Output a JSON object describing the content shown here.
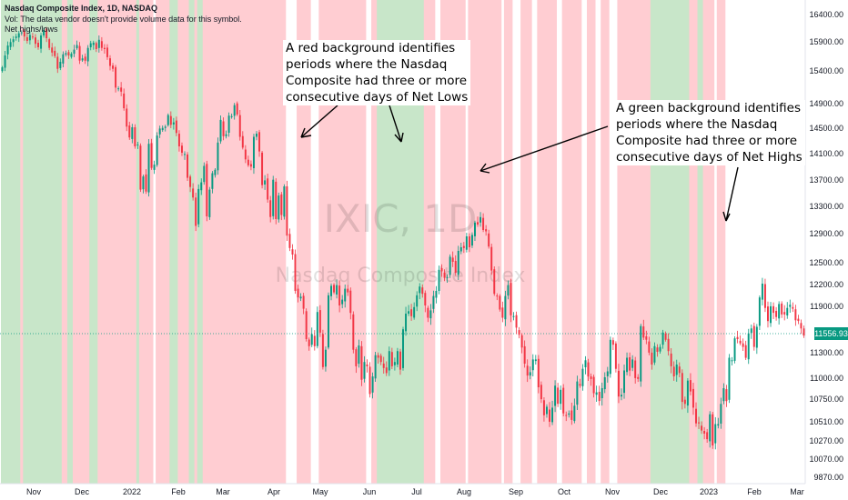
{
  "header": {
    "symbol_line": "Nasdaq Composite Index, 1D, NASDAQ",
    "vol_line": "Vol: The data vendor doesn't provide volume data for this symbol.",
    "indicator_line": "Net highs/lows"
  },
  "watermark": {
    "ticker": "IXIC, 1D",
    "name": "Nasdaq Composite Index"
  },
  "annotations": {
    "red_text": [
      "A red background identifies",
      "periods where the Nasdaq",
      "Composite had three or more",
      "consecutive days of Net Lows"
    ],
    "green_text": [
      "A green background identifies",
      "periods where the Nasdaq",
      "Composite had three or more",
      "consecutive days of Net Highs"
    ]
  },
  "colors": {
    "up": "#089981",
    "down": "#f23645",
    "red_bg": "#ffcdd2",
    "green_bg": "#c8e6c9",
    "price_label": "#089981"
  },
  "chart_data": {
    "type": "candlestick",
    "title": "Nasdaq Composite Index, 1D, NASDAQ",
    "y_range": [
      9870,
      16400
    ],
    "y_ticks": [
      "16400.00",
      "15900.00",
      "15400.00",
      "14900.00",
      "14500.00",
      "14100.00",
      "13700.00",
      "13300.00",
      "12900.00",
      "12500.00",
      "12200.00",
      "11900.00",
      "11300.00",
      "11000.00",
      "10750.00",
      "10510.00",
      "10270.00",
      "10070.00",
      "9870.00"
    ],
    "last_price": "11556.93",
    "x_ticks": [
      "Nov",
      "Dec",
      "2022",
      "Feb",
      "Mar",
      "Apr",
      "May",
      "Jun",
      "Jul",
      "Aug",
      "Sep",
      "Oct",
      "Nov",
      "Dec",
      "2023",
      "Feb",
      "Mar"
    ],
    "regimes": [
      [
        "g",
        7
      ],
      [
        "r",
        1
      ],
      [
        "g",
        14
      ],
      [
        "r",
        2
      ],
      [
        "g",
        2
      ],
      [
        "r",
        6
      ],
      [
        "g",
        3
      ],
      [
        "r",
        14
      ],
      [
        "g",
        1
      ],
      [
        "r",
        5
      ],
      [
        "w",
        1
      ],
      [
        "r",
        5
      ],
      [
        "g",
        3
      ],
      [
        "r",
        4
      ],
      [
        "g",
        2
      ],
      [
        "r",
        1
      ],
      [
        "g",
        2
      ],
      [
        "r",
        30
      ],
      [
        "w",
        4
      ],
      [
        "r",
        5
      ],
      [
        "w",
        3
      ],
      [
        "r",
        17
      ],
      [
        "w",
        2
      ],
      [
        "r",
        2
      ],
      [
        "g",
        17
      ],
      [
        "r",
        4
      ],
      [
        "w",
        2
      ],
      [
        "r",
        9
      ],
      [
        "w",
        1
      ],
      [
        "r",
        12
      ],
      [
        "w",
        1
      ],
      [
        "r",
        3
      ],
      [
        "w",
        3
      ],
      [
        "r",
        4
      ],
      [
        "w",
        2
      ],
      [
        "r",
        7
      ],
      [
        "w",
        2
      ],
      [
        "r",
        7
      ],
      [
        "w",
        2
      ],
      [
        "r",
        3
      ],
      [
        "w",
        2
      ],
      [
        "r",
        3
      ],
      [
        "w",
        3
      ],
      [
        "r",
        12
      ],
      [
        "g",
        14
      ],
      [
        "r",
        3
      ],
      [
        "g",
        2
      ],
      [
        "r",
        4
      ],
      [
        "w",
        1
      ],
      [
        "r",
        3
      ],
      [
        "w",
        4
      ]
    ],
    "closes": [
      15445,
      15650,
      15820,
      15880,
      15930,
      15980,
      16040,
      16057,
      15980,
      15900,
      16010,
      15970,
      15850,
      15790,
      16000,
      16100,
      15950,
      15780,
      15700,
      15640,
      15420,
      15540,
      15670,
      15690,
      15650,
      15680,
      15750,
      15830,
      15560,
      15600,
      15560,
      15780,
      15860,
      15870,
      15760,
      15920,
      15780,
      15760,
      15620,
      15470,
      15420,
      15130,
      15120,
      15070,
      14810,
      14510,
      14340,
      14500,
      14200,
      14230,
      13540,
      13740,
      13510,
      14240,
      13870,
      13920,
      14370,
      14480,
      14490,
      14510,
      14700,
      14540,
      14580,
      14410,
      14200,
      14100,
      14080,
      13720,
      13580,
      13420,
      13000,
      13550,
      13650,
      13900,
      13140,
      13540,
      13790,
      13840,
      14260,
      14620,
      14360,
      14390,
      14690,
      14680,
      14860,
      14710,
      14350,
      14180,
      14000,
      13910,
      13890,
      14350,
      14400,
      14120,
      13610,
      13680,
      13390,
      13130,
      13690,
      13100,
      13450,
      13160,
      13590,
      12860,
      12690,
      12600,
      12100,
      12010,
      12020,
      11860,
      11480,
      11380,
      11550,
      11380,
      11820,
      11570,
      11120,
      11330,
      12040,
      12170,
      12080,
      12180,
      11900,
      11980,
      12130,
      12080,
      11810,
      11330,
      11130,
      11390,
      10970,
      11180,
      11130,
      10800,
      11010,
      11260,
      11230,
      11180,
      11110,
      11050,
      11310,
      11130,
      11180,
      11310,
      11090,
      11610,
      11800,
      11830,
      11770,
      11880,
      12040,
      12160,
      12060,
      11900,
      11750,
      11840,
      12030,
      12100,
      12390,
      12370,
      12280,
      12290,
      12570,
      12500,
      12350,
      12650,
      12700,
      12690,
      12850,
      12700,
      12870,
      13050,
      13020,
      13130,
      12940,
      12920,
      12710,
      12380,
      12060,
      12030,
      11850,
      11750,
      12030,
      12180,
      11780,
      11770,
      11630,
      11540,
      11360,
      11160,
      11020,
      11060,
      11210,
      11210,
      10880,
      10740,
      10570,
      10660,
      10500,
      10650,
      10900,
      10690,
      10850,
      10590,
      10570,
      10590,
      10520,
      10670,
      10950,
      10900,
      11100,
      11200,
      11010,
      10980,
      10810,
      10820,
      10720,
      10870,
      11000,
      11070,
      11470,
      11400,
      11100,
      10770,
      10790,
      11080,
      11230,
      11080,
      11210,
      10990,
      10980,
      11650,
      11500,
      11470,
      11290,
      11150,
      11380,
      11300,
      11370,
      11570,
      11470,
      11310,
      11130,
      11010,
      11150,
      11050,
      10710,
      10690,
      10960,
      10830,
      10650,
      10480,
      10480,
      10390,
      10350,
      10280,
      10580,
      10210,
      10470,
      10470,
      10690,
      10870,
      10720,
      11230,
      11200,
      11490,
      11480,
      11420,
      11370,
      11230,
      11560,
      11620,
      11370,
      11640,
      12010,
      12200,
      11870,
      11710,
      11890,
      11810,
      11760,
      11920,
      11790,
      11790,
      11870,
      11910,
      11860,
      11720,
      11710,
      11620,
      11530
    ]
  }
}
